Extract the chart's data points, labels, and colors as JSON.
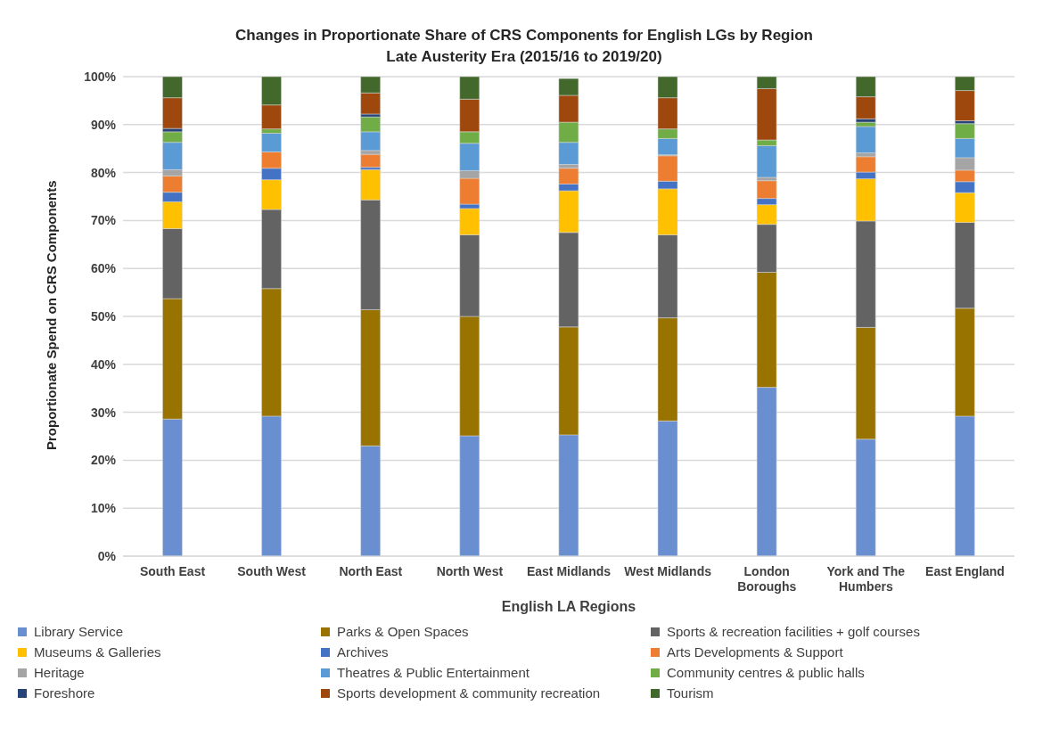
{
  "chart_data": {
    "type": "bar",
    "stacked": true,
    "title": "Changes in Proportionate Share of CRS Components for English LGs by Region",
    "subtitle": "Late Austerity Era (2015/16 to 2019/20)",
    "xlabel": "English LA Regions",
    "ylabel": "Proportionate Spend on CRS Components",
    "categories": [
      "South East",
      "South West",
      "North East",
      "North West",
      "East Midlands",
      "West Midlands",
      "London Boroughs",
      "York and The Humbers",
      "East England"
    ],
    "series": [
      {
        "name": "Library Service",
        "color": "#6a8fd0",
        "values": [
          28.6,
          29.2,
          23.0,
          25.1,
          25.3,
          28.2,
          35.2,
          24.4,
          29.2
        ]
      },
      {
        "name": "Parks & Open Spaces",
        "color": "#997300",
        "values": [
          25.1,
          26.6,
          28.4,
          24.9,
          22.5,
          21.5,
          24.0,
          23.3,
          22.5
        ]
      },
      {
        "name": "Sports & recreation facilities + golf courses",
        "color": "#636363",
        "values": [
          14.6,
          16.5,
          22.9,
          17.0,
          19.7,
          17.3,
          10.0,
          22.2,
          17.9
        ]
      },
      {
        "name": "Museums & Galleries",
        "color": "#ffc000",
        "values": [
          5.6,
          6.2,
          6.3,
          5.5,
          8.7,
          9.6,
          4.1,
          8.8,
          6.2
        ]
      },
      {
        "name": "Archives",
        "color": "#4472c4",
        "values": [
          2.0,
          2.4,
          0.5,
          0.9,
          1.4,
          1.6,
          1.3,
          1.4,
          2.3
        ]
      },
      {
        "name": "Arts Developments & Support",
        "color": "#ed7d31",
        "values": [
          3.4,
          3.4,
          2.7,
          5.4,
          3.3,
          5.3,
          3.7,
          3.2,
          2.4
        ]
      },
      {
        "name": "Heritage",
        "color": "#a5a5a5",
        "values": [
          1.3,
          0,
          0.8,
          1.6,
          0.8,
          0.2,
          0.7,
          0.8,
          2.6
        ]
      },
      {
        "name": "Theatres & Public Entertainment",
        "color": "#5b9bd5",
        "values": [
          5.7,
          3.9,
          3.9,
          5.7,
          4.6,
          3.4,
          6.6,
          5.5,
          4.0
        ]
      },
      {
        "name": "Community centres & public halls",
        "color": "#70ad47",
        "values": [
          2.2,
          0.9,
          3.1,
          2.4,
          4.2,
          2.0,
          1.2,
          0.9,
          3.1
        ]
      },
      {
        "name": "Foreshore",
        "color": "#264478",
        "values": [
          0.7,
          0,
          0.6,
          0,
          0,
          0,
          0,
          0.7,
          0.6
        ]
      },
      {
        "name": "Sports development & community recreation",
        "color": "#9e480e",
        "values": [
          6.4,
          5.0,
          4.4,
          6.8,
          5.6,
          6.5,
          10.7,
          4.6,
          6.3
        ]
      },
      {
        "name": "Tourism",
        "color": "#43682b",
        "values": [
          4.4,
          5.9,
          3.4,
          4.7,
          3.5,
          4.4,
          2.5,
          4.2,
          2.9
        ]
      }
    ],
    "ylim": [
      0,
      100
    ],
    "yticks": [
      {
        "value": 0,
        "label": "0%"
      },
      {
        "value": 10,
        "label": "10%"
      },
      {
        "value": 20,
        "label": "20%"
      },
      {
        "value": 30,
        "label": "30%"
      },
      {
        "value": 40,
        "label": "40%"
      },
      {
        "value": 50,
        "label": "50%"
      },
      {
        "value": 60,
        "label": "60%"
      },
      {
        "value": 70,
        "label": "70%"
      },
      {
        "value": 80,
        "label": "80%"
      },
      {
        "value": 90,
        "label": "90%"
      },
      {
        "value": 100,
        "label": "100%"
      }
    ],
    "grid": "y",
    "legend": "bottom"
  }
}
